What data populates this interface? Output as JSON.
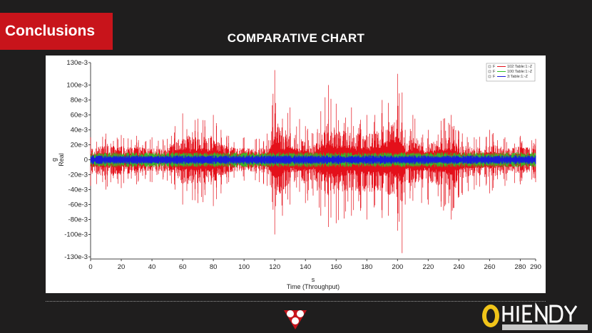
{
  "header": {
    "section_label": "Conclusions",
    "slide_title": "COMPARATIVE CHART"
  },
  "colors": {
    "accent": "#c8141b",
    "background": "#1f1e1e",
    "series_red": "#e4101a",
    "series_green": "#2fc128",
    "series_blue": "#1a1adb"
  },
  "chart_data": {
    "type": "line",
    "title": "",
    "xlabel": "Time (Throughput)",
    "x_unit": "s",
    "ylabel": "Real",
    "y_unit": "g",
    "xlim": [
      0,
      290
    ],
    "ylim": [
      -130,
      130
    ],
    "x_ticks": [
      0,
      20,
      40,
      60,
      80,
      100,
      120,
      140,
      160,
      180,
      200,
      220,
      240,
      260,
      280,
      290
    ],
    "y_ticks": [
      130,
      100,
      80,
      60,
      40,
      20,
      0,
      -20,
      -40,
      -60,
      -80,
      -100,
      -130
    ],
    "y_tick_labels": [
      "130e-3",
      "100e-3",
      "80e-3",
      "60e-3",
      "40e-3",
      "20e-3",
      "0",
      "-20e-3",
      "-40e-3",
      "-60e-3",
      "-80e-3",
      "-100e-3",
      "-130e-3"
    ],
    "legend": {
      "placement": "top-right",
      "entries": [
        {
          "marker": "F",
          "label": "102:Table:1:-Z",
          "color": "#e4101a"
        },
        {
          "marker": "F",
          "label": "100:Table:1:-Z",
          "color": "#2fc128"
        },
        {
          "marker": "F",
          "label": "3:Table:1:-Z",
          "color": "#1a1adb"
        }
      ]
    },
    "series": [
      {
        "name": "102:Table:1:-Z",
        "color": "#e4101a",
        "envelope": {
          "x": [
            0,
            10,
            20,
            30,
            40,
            50,
            55,
            60,
            70,
            80,
            85,
            90,
            100,
            110,
            115,
            120,
            125,
            130,
            140,
            145,
            150,
            155,
            160,
            170,
            180,
            190,
            200,
            203,
            205,
            210,
            220,
            230,
            235,
            240,
            250,
            260,
            270,
            280,
            290
          ],
          "ymax": [
            30,
            35,
            33,
            32,
            30,
            28,
            45,
            62,
            55,
            60,
            40,
            32,
            30,
            28,
            35,
            120,
            55,
            70,
            45,
            35,
            65,
            100,
            75,
            70,
            60,
            80,
            115,
            90,
            40,
            60,
            40,
            55,
            60,
            38,
            30,
            40,
            30,
            32,
            28
          ],
          "ymin": [
            -35,
            -40,
            -38,
            -33,
            -30,
            -28,
            -40,
            -60,
            -58,
            -62,
            -45,
            -30,
            -28,
            -30,
            -35,
            -100,
            -75,
            -60,
            -58,
            -48,
            -75,
            -90,
            -85,
            -75,
            -80,
            -78,
            -95,
            -125,
            -60,
            -55,
            -60,
            -68,
            -80,
            -50,
            -40,
            -45,
            -35,
            -33,
            -30
          ]
        }
      },
      {
        "name": "100:Table:1:-Z",
        "color": "#2fc128",
        "envelope_amplitude": 10
      },
      {
        "name": "3:Table:1:-Z",
        "color": "#1a1adb",
        "envelope_amplitude": 6
      }
    ]
  }
}
